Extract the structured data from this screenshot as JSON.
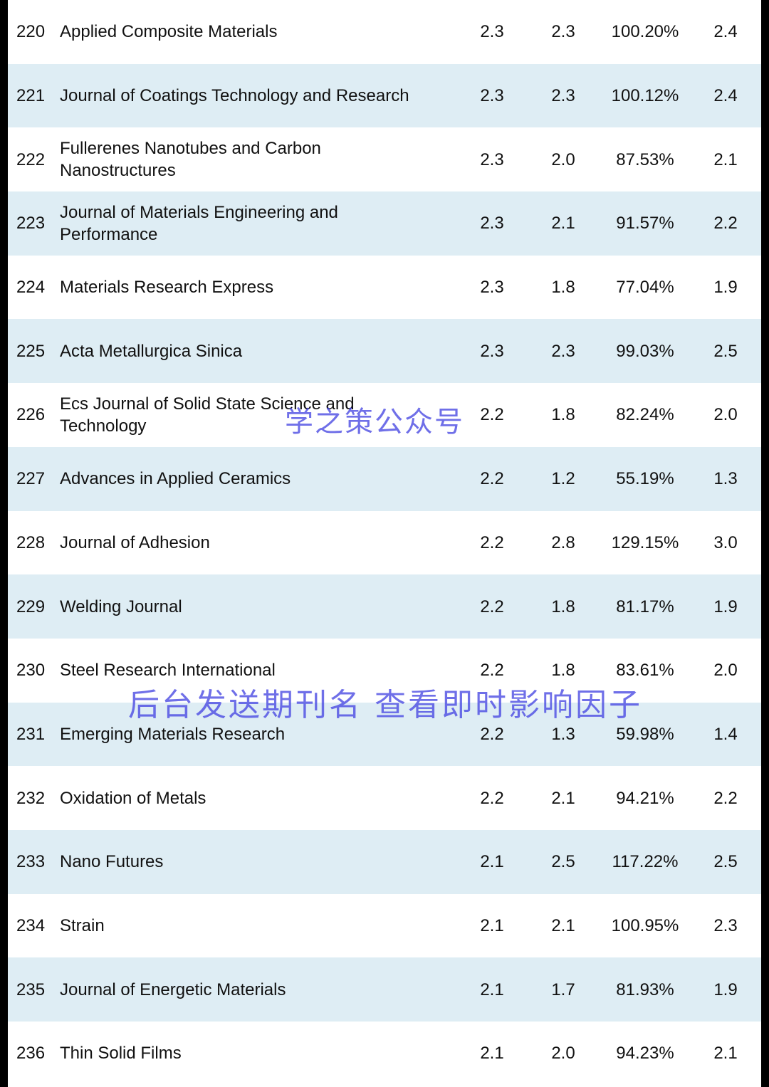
{
  "rows": [
    {
      "rank": "220",
      "name": "Applied Composite Materials",
      "v1": "2.3",
      "v2": "2.3",
      "pct": "100.20%",
      "v3": "2.4"
    },
    {
      "rank": "221",
      "name": "Journal of Coatings Technology and Research",
      "v1": "2.3",
      "v2": "2.3",
      "pct": "100.12%",
      "v3": "2.4"
    },
    {
      "rank": "222",
      "name": "Fullerenes Nanotubes and Carbon Nanostructures",
      "v1": "2.3",
      "v2": "2.0",
      "pct": "87.53%",
      "v3": "2.1"
    },
    {
      "rank": "223",
      "name": "Journal of Materials Engineering and Performance",
      "v1": "2.3",
      "v2": "2.1",
      "pct": "91.57%",
      "v3": "2.2"
    },
    {
      "rank": "224",
      "name": "Materials Research Express",
      "v1": "2.3",
      "v2": "1.8",
      "pct": "77.04%",
      "v3": "1.9"
    },
    {
      "rank": "225",
      "name": "Acta Metallurgica Sinica",
      "v1": "2.3",
      "v2": "2.3",
      "pct": "99.03%",
      "v3": "2.5"
    },
    {
      "rank": "226",
      "name": "Ecs Journal of Solid State Science and Technology",
      "v1": "2.2",
      "v2": "1.8",
      "pct": "82.24%",
      "v3": "2.0"
    },
    {
      "rank": "227",
      "name": "Advances in Applied Ceramics",
      "v1": "2.2",
      "v2": "1.2",
      "pct": "55.19%",
      "v3": "1.3"
    },
    {
      "rank": "228",
      "name": "Journal of Adhesion",
      "v1": "2.2",
      "v2": "2.8",
      "pct": "129.15%",
      "v3": "3.0"
    },
    {
      "rank": "229",
      "name": "Welding Journal",
      "v1": "2.2",
      "v2": "1.8",
      "pct": "81.17%",
      "v3": "1.9"
    },
    {
      "rank": "230",
      "name": "Steel Research International",
      "v1": "2.2",
      "v2": "1.8",
      "pct": "83.61%",
      "v3": "2.0"
    },
    {
      "rank": "231",
      "name": "Emerging Materials Research",
      "v1": "2.2",
      "v2": "1.3",
      "pct": "59.98%",
      "v3": "1.4"
    },
    {
      "rank": "232",
      "name": "Oxidation of Metals",
      "v1": "2.2",
      "v2": "2.1",
      "pct": "94.21%",
      "v3": "2.2"
    },
    {
      "rank": "233",
      "name": "Nano Futures",
      "v1": "2.1",
      "v2": "2.5",
      "pct": "117.22%",
      "v3": "2.5"
    },
    {
      "rank": "234",
      "name": "Strain",
      "v1": "2.1",
      "v2": "2.1",
      "pct": "100.95%",
      "v3": "2.3"
    },
    {
      "rank": "235",
      "name": "Journal of Energetic Materials",
      "v1": "2.1",
      "v2": "1.7",
      "pct": "81.93%",
      "v3": "1.9"
    },
    {
      "rank": "236",
      "name": "Thin Solid Films",
      "v1": "2.1",
      "v2": "2.0",
      "pct": "94.23%",
      "v3": "2.1"
    }
  ],
  "watermarks": {
    "account": "学之策公众号",
    "promo": "后台发送期刊名 查看即时影响因子"
  },
  "colors": {
    "shaded_row": "#deedf4",
    "border": "#000000",
    "watermark": "#4646e1"
  }
}
